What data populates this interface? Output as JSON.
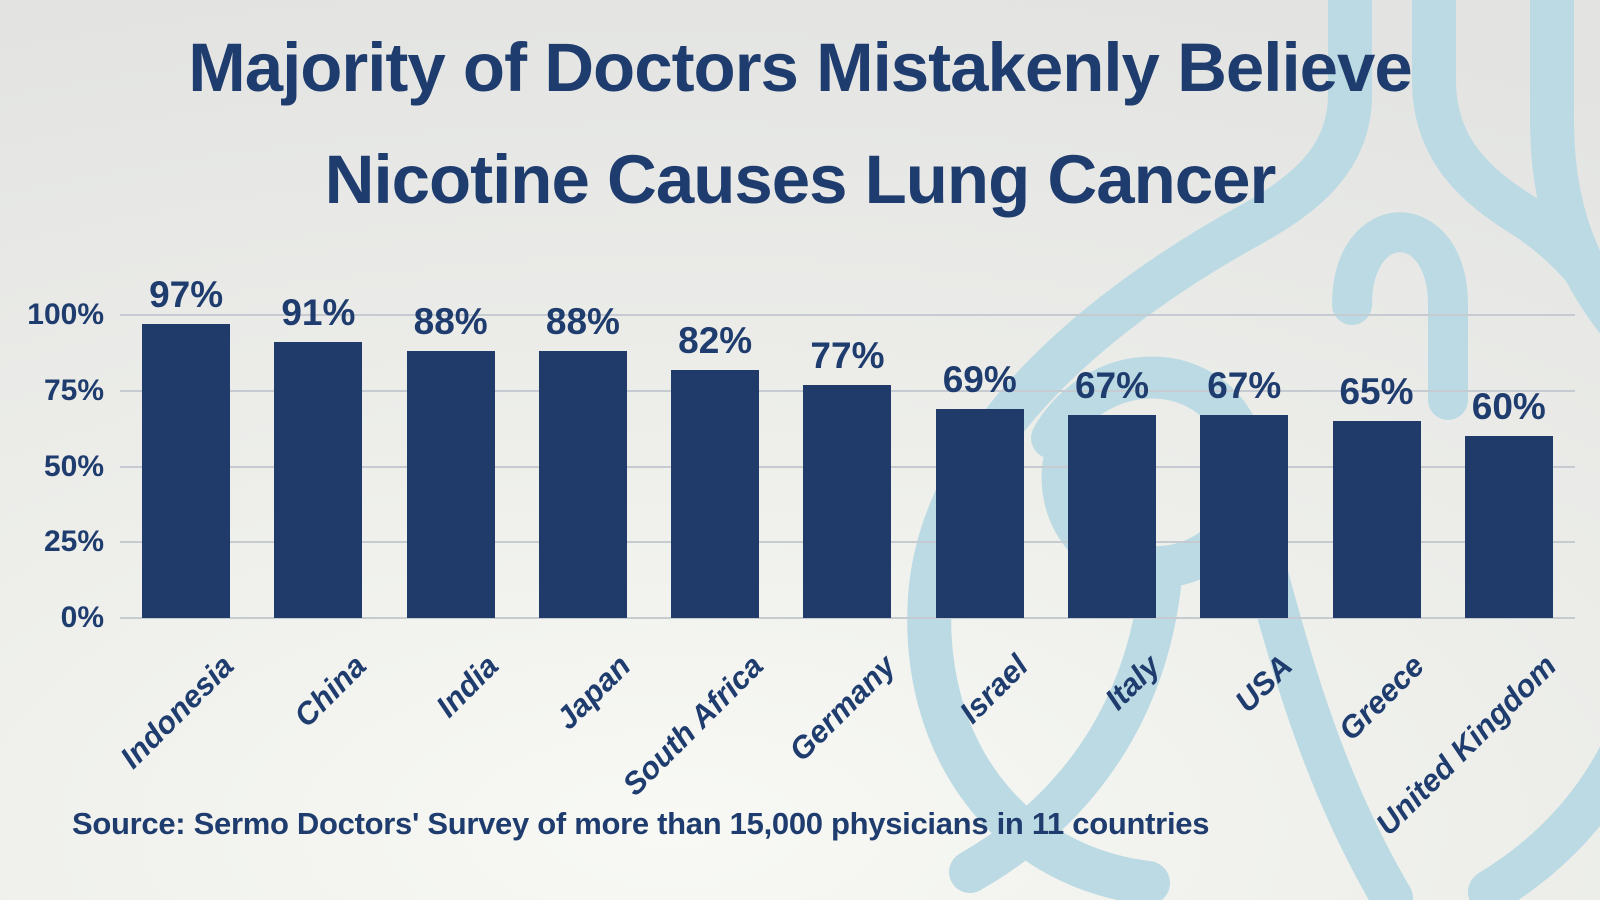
{
  "title": {
    "line1": "Majority of Doctors Mistakenly Believe",
    "line2": "Nicotine Causes Lung Cancer"
  },
  "source": "Source: Sermo Doctors' Survey of more than 15,000 physicians in 11 countries",
  "colors": {
    "navy": "#1f3c6e",
    "bar": "#203a69",
    "grid": "#c5cbd1",
    "watermark_blue": "#bcdae3",
    "bg_light": "#f8f9f5",
    "bg_mid": "#edeeea",
    "bg_dark": "#e3e4e2"
  },
  "chart_data": {
    "type": "bar",
    "title": "Majority of Doctors Mistakenly Believe Nicotine Causes Lung Cancer",
    "categories": [
      "Indonesia",
      "China",
      "India",
      "Japan",
      "South Africa",
      "Germany",
      "Israel",
      "Italy",
      "USA",
      "Greece",
      "United Kingdom"
    ],
    "values": [
      97,
      91,
      88,
      88,
      82,
      77,
      69,
      67,
      67,
      65,
      60
    ],
    "value_labels": [
      "97%",
      "91%",
      "88%",
      "88%",
      "82%",
      "77%",
      "69%",
      "67%",
      "67%",
      "65%",
      "60%"
    ],
    "xlabel": "",
    "ylabel": "",
    "ylim": [
      0,
      100
    ],
    "yticks": [
      "100%",
      "75%",
      "50%",
      "25%",
      "0%"
    ],
    "grid": true,
    "legend": false,
    "annotation": "Source: Sermo Doctors' Survey of more than 15,000 physicians in 11 countries"
  }
}
